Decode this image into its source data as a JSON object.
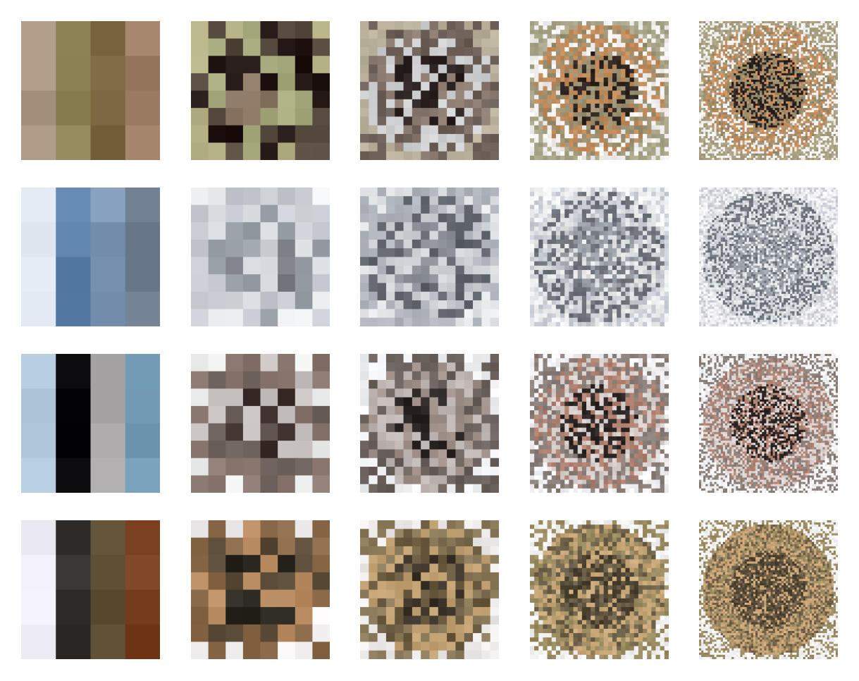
{
  "figure": {
    "rows": [
      {
        "samples": [
          {
            "resolution": 4,
            "palette": [
              "#a89480",
              "#8e8458",
              "#7c6640",
              "#9c7c62"
            ]
          },
          {
            "resolution": 8,
            "palette": [
              "#b7b488",
              "#8b7663",
              "#564a3e",
              "#221614",
              "#a6aa7c"
            ]
          },
          {
            "resolution": 16,
            "palette": [
              "#b8b09a",
              "#2a2220",
              "#6a5e56",
              "#cfd0d2",
              "#8a7a70"
            ]
          },
          {
            "resolution": 32,
            "palette": [
              "#a8a488",
              "#2e2420",
              "#f2f0ee",
              "#c08a5a",
              "#9a9070"
            ]
          },
          {
            "resolution": 64,
            "palette": [
              "#a8a080",
              "#2a2220",
              "#f4f2f0",
              "#c89060",
              "#948c6c"
            ]
          }
        ]
      },
      {
        "samples": [
          {
            "resolution": 4,
            "palette": [
              "#dfe6f0",
              "#5a7fa8",
              "#7f98b7",
              "#6a7a8c"
            ]
          },
          {
            "resolution": 8,
            "palette": [
              "#eef0f2",
              "#7a7c84",
              "#c8ccd2",
              "#9aa0a8",
              "#d4d8dc"
            ]
          },
          {
            "resolution": 16,
            "palette": [
              "#e4e6ea",
              "#8a8e96",
              "#b0b4bc",
              "#5e626a",
              "#cfd2d6"
            ]
          },
          {
            "resolution": 32,
            "palette": [
              "#eef0f2",
              "#9aa0a8",
              "#c8ccd4",
              "#6c7078",
              "#e2e4e6"
            ]
          },
          {
            "resolution": 64,
            "palette": [
              "#f2f2f4",
              "#a0a6ae",
              "#cdd0d6",
              "#707680",
              "#e6e8ea"
            ]
          }
        ]
      },
      {
        "samples": [
          {
            "resolution": 4,
            "palette": [
              "#b8cfe2",
              "#0a0a0c",
              "#a7a5a6",
              "#6e98b2"
            ]
          },
          {
            "resolution": 8,
            "palette": [
              "#eceeee",
              "#3a2c28",
              "#8a7870",
              "#c8c2c0",
              "#6a5e58"
            ]
          },
          {
            "resolution": 16,
            "palette": [
              "#eef0f2",
              "#2a2422",
              "#6a605c",
              "#c0b8b4",
              "#a0908a"
            ]
          },
          {
            "resolution": 32,
            "palette": [
              "#f2f2f4",
              "#2c2624",
              "#8a7e78",
              "#d8d0cc",
              "#b08070"
            ]
          },
          {
            "resolution": 64,
            "palette": [
              "#f4f4f6",
              "#2a2422",
              "#8c807a",
              "#dcd4d0",
              "#b48474"
            ]
          }
        ]
      },
      {
        "samples": [
          {
            "resolution": 4,
            "palette": [
              "#f0eef6",
              "#363230",
              "#5a4a30",
              "#7a4020"
            ]
          },
          {
            "resolution": 8,
            "palette": [
              "#f2f0f0",
              "#2a2620",
              "#8a6a48",
              "#b88a60",
              "#5a4a38"
            ]
          },
          {
            "resolution": 16,
            "palette": [
              "#eeecea",
              "#3a3228",
              "#8a7a5a",
              "#c0a070",
              "#6a5a40"
            ]
          },
          {
            "resolution": 32,
            "palette": [
              "#f2f2f2",
              "#4a4030",
              "#9a8a60",
              "#c8a878",
              "#6c6048"
            ]
          },
          {
            "resolution": 64,
            "palette": [
              "#f4f4f4",
              "#4c4232",
              "#9c8c64",
              "#cca87a",
              "#706048"
            ]
          }
        ]
      }
    ]
  }
}
